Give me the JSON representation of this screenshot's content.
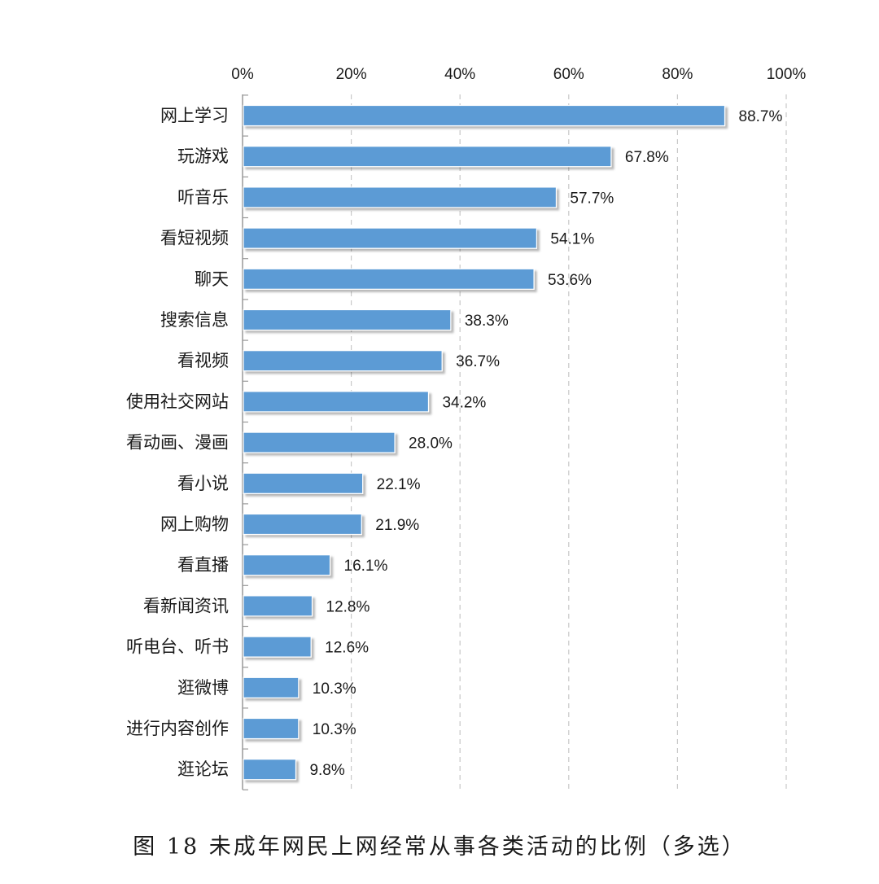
{
  "chart_data": {
    "type": "bar",
    "orientation": "horizontal",
    "categories": [
      "网上学习",
      "玩游戏",
      "听音乐",
      "看短视频",
      "聊天",
      "搜索信息",
      "看视频",
      "使用社交网站",
      "看动画、漫画",
      "看小说",
      "网上购物",
      "看直播",
      "看新闻资讯",
      "听电台、听书",
      "逛微博",
      "进行内容创作",
      "逛论坛"
    ],
    "values": [
      88.7,
      67.8,
      57.7,
      54.1,
      53.6,
      38.3,
      36.7,
      34.2,
      28.0,
      22.1,
      21.9,
      16.1,
      12.8,
      12.6,
      10.3,
      10.3,
      9.8
    ],
    "value_labels": [
      "88.7%",
      "67.8%",
      "57.7%",
      "54.1%",
      "53.6%",
      "38.3%",
      "36.7%",
      "34.2%",
      "28.0%",
      "22.1%",
      "21.9%",
      "16.1%",
      "12.8%",
      "12.6%",
      "10.3%",
      "10.3%",
      "9.8%"
    ],
    "x_ticks": [
      "0%",
      "20%",
      "40%",
      "60%",
      "80%",
      "100%"
    ],
    "xlim": [
      0,
      100
    ],
    "x_axis_position": "top",
    "grid": "vertical dashed",
    "bar_color": "#5b9bd5",
    "title": "图 18 未成年网民上网经常从事各类活动的比例（多选）"
  }
}
